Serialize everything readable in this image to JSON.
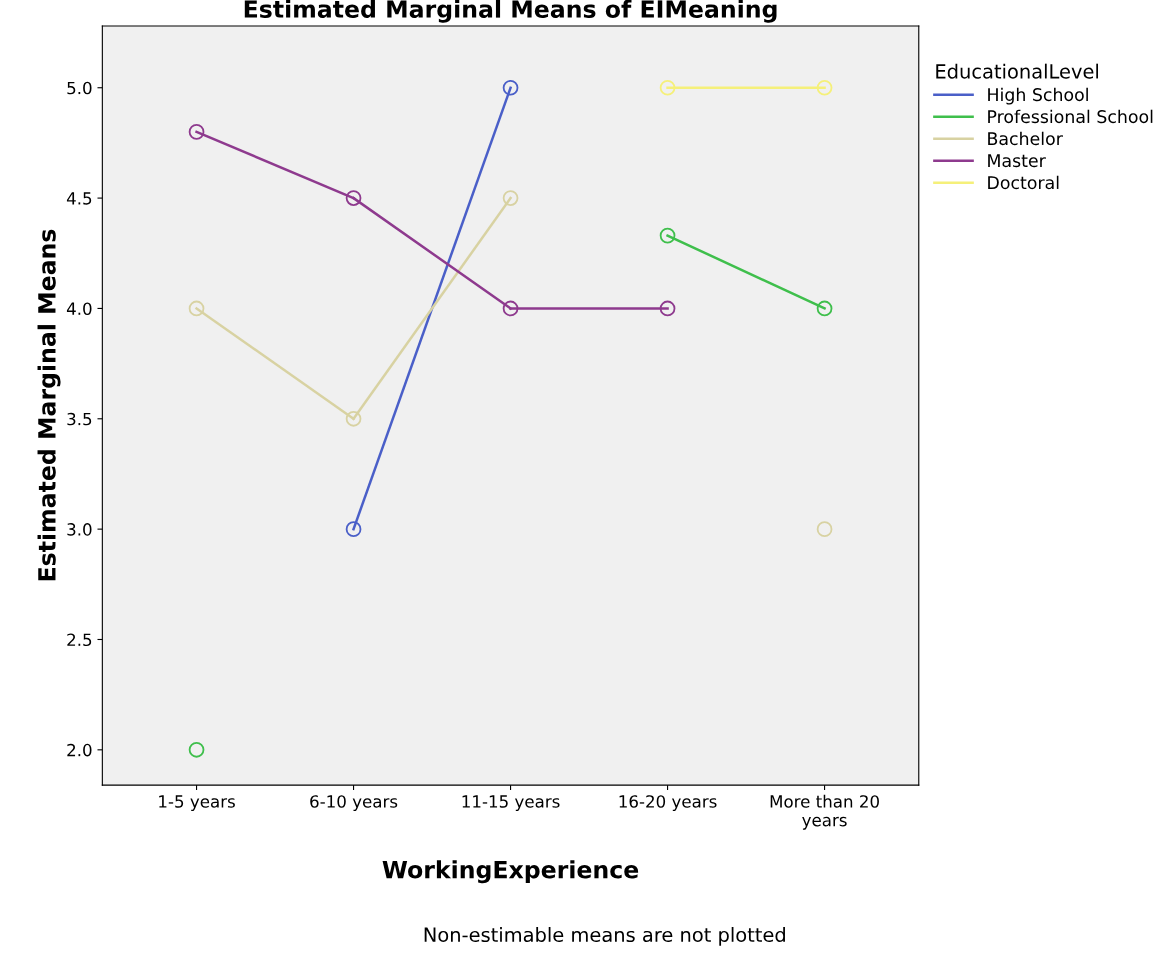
{
  "chart_data": {
    "type": "line",
    "title": "Estimated Marginal Means of EIMeaning",
    "xlabel": "WorkingExperience",
    "ylabel": "Estimated Marginal Means",
    "legend_title": "EducationalLevel",
    "categories": [
      "1-5 years",
      "6-10 years",
      "11-15 years",
      "16-20 years",
      "More than 20\nyears"
    ],
    "series": [
      {
        "name": "High School",
        "color": "#4a5fc8",
        "values": [
          null,
          3.0,
          5.0,
          null,
          null
        ]
      },
      {
        "name": "Professional School",
        "color": "#3fbf4c",
        "values": [
          2.0,
          null,
          null,
          4.33,
          4.0
        ]
      },
      {
        "name": "Bachelor",
        "color": "#d8d2a2",
        "values": [
          4.0,
          3.5,
          4.5,
          null,
          3.0
        ]
      },
      {
        "name": "Master",
        "color": "#8e3a8e",
        "values": [
          4.8,
          4.5,
          4.0,
          4.0,
          null
        ]
      },
      {
        "name": "Doctoral",
        "color": "#f5f07a",
        "values": [
          null,
          null,
          null,
          5.0,
          5.0
        ]
      }
    ],
    "ylim": [
      1.84,
      5.28
    ],
    "yticks": [
      {
        "value": 2,
        "label": "2.0"
      },
      {
        "value": 2.5,
        "label": "2.5"
      },
      {
        "value": 3,
        "label": "3.0"
      },
      {
        "value": 3.5,
        "label": "3.5"
      },
      {
        "value": 4,
        "label": "4.0"
      },
      {
        "value": 4.5,
        "label": "4.5"
      },
      {
        "value": 5,
        "label": "5.0"
      }
    ],
    "marker": "circle",
    "line_style": "solid",
    "grid": false,
    "legend": "right",
    "annotations": [
      "Non-estimable means are not plotted"
    ]
  }
}
